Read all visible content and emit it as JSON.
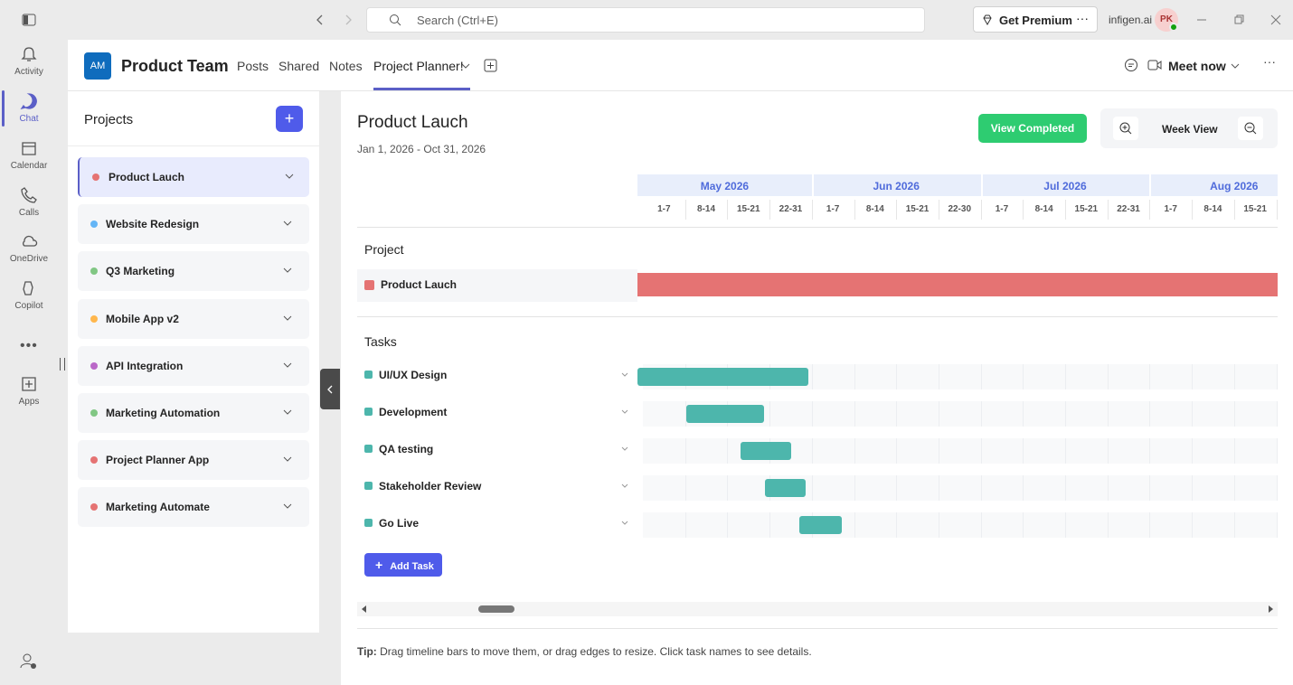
{
  "titlebar": {
    "search": "Search (Ctrl+E)",
    "premium": "Get Premium",
    "org": "infigen.ai",
    "avatar": "PK"
  },
  "rail": [
    "Activity",
    "Chat",
    "Calendar",
    "Calls",
    "OneDrive",
    "Copilot",
    "Apps"
  ],
  "header": {
    "badge": "AM",
    "team": "Product Team",
    "tabs": [
      "Posts",
      "Shared",
      "Notes",
      "Project Planner!"
    ],
    "meet": "Meet now"
  },
  "sidebar": {
    "title": "Projects",
    "projects": [
      {
        "name": "Product Lauch",
        "color": "#e57373"
      },
      {
        "name": "Website Redesign",
        "color": "#64b5f6"
      },
      {
        "name": "Q3 Marketing",
        "color": "#81c784"
      },
      {
        "name": "Mobile App v2",
        "color": "#ffb74d"
      },
      {
        "name": "API Integration",
        "color": "#ba68c8"
      },
      {
        "name": "Marketing Automation",
        "color": "#81c784"
      },
      {
        "name": "Project Planner App",
        "color": "#e57373"
      },
      {
        "name": "Marketing Automate",
        "color": "#e57373"
      }
    ]
  },
  "main": {
    "title": "Product Lauch",
    "dates": "Jan 1, 2026 - Oct 31, 2026",
    "view_completed": "View Completed",
    "view": "Week View",
    "months": [
      {
        "name": "May 2026",
        "weeks": [
          "1-7",
          "8-14",
          "15-21",
          "22-31"
        ]
      },
      {
        "name": "Jun 2026",
        "weeks": [
          "1-7",
          "8-14",
          "15-21",
          "22-30"
        ]
      },
      {
        "name": "Jul 2026",
        "weeks": [
          "1-7",
          "8-14",
          "15-21",
          "22-31"
        ]
      },
      {
        "name": "Aug 2026",
        "weeks": [
          "1-7",
          "8-14",
          "15-21"
        ]
      }
    ],
    "project_heading": "Project",
    "project_row": "Product Lauch",
    "project_color": "#e57373",
    "tasks_heading": "Tasks",
    "task_color": "#4db6ac",
    "tasks": [
      "UI/UX Design",
      "Development",
      "QA testing",
      "Stakeholder Review",
      "Go Live"
    ],
    "add_task": "Add Task",
    "tip_label": "Tip:",
    "tip": "Drag timeline bars to move them, or drag edges to resize. Click task names to see details."
  }
}
